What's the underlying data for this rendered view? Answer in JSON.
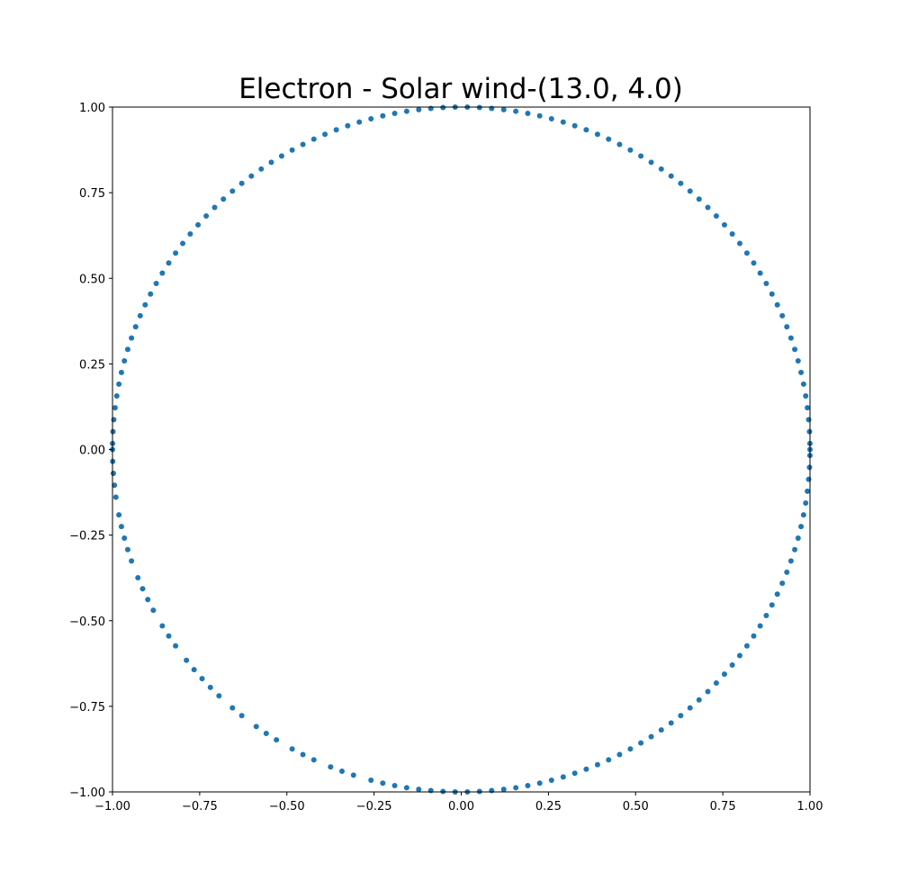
{
  "chart_data": {
    "type": "scatter",
    "title": "Electron - Solar wind-(13.0, 4.0)",
    "xlabel": "",
    "ylabel": "",
    "xlim": [
      -1.0,
      1.0
    ],
    "ylim": [
      -1.0,
      1.0
    ],
    "grid": false,
    "marker_color": "#1f77b4",
    "x_ticks": [
      "−1.00",
      "−0.75",
      "−0.50",
      "−0.25",
      "0.00",
      "0.25",
      "0.50",
      "0.75",
      "1.00"
    ],
    "y_ticks": [
      "−1.00",
      "−0.75",
      "−0.50",
      "−0.25",
      "0.00",
      "0.25",
      "0.50",
      "0.75",
      "1.00"
    ],
    "series": [
      {
        "angles_deg": [
          -180,
          -178,
          -176,
          -174,
          -172,
          -169,
          -167,
          -165,
          -163,
          -161,
          -158,
          -156,
          -154,
          -152,
          -149,
          -147,
          -145,
          -142,
          -140,
          -138,
          -136,
          -134,
          -131,
          -129,
          -126,
          -124,
          -122,
          -119,
          -117,
          -115,
          -112,
          -110,
          -108,
          -105,
          -103,
          -101,
          -99,
          -97,
          -95,
          -93,
          -91,
          -89,
          -87,
          -85,
          -83,
          -81,
          -79,
          -77,
          -75,
          -73,
          -71,
          -69,
          -67,
          -65,
          -63,
          -61,
          -59,
          -57,
          -55,
          -53,
          -51,
          -49,
          -47,
          -45,
          -43,
          -41,
          -39,
          -37,
          -35,
          -33,
          -31,
          -29,
          -27,
          -25,
          -23,
          -21,
          -19,
          -17,
          -15,
          -13,
          -11,
          -9,
          -7,
          -5,
          -3,
          -1,
          0,
          1,
          3,
          5,
          7,
          9,
          11,
          13,
          15,
          17,
          19,
          21,
          23,
          25,
          27,
          29,
          31,
          33,
          35,
          37,
          39,
          41,
          43,
          45,
          47,
          49,
          51,
          53,
          55,
          57,
          59,
          61,
          63,
          65,
          67,
          69,
          71,
          73,
          75,
          77,
          79,
          81,
          83,
          85,
          87,
          89,
          91,
          93,
          95,
          97,
          99,
          101,
          103,
          105,
          107,
          109,
          111,
          113,
          115,
          117,
          119,
          121,
          123,
          125,
          127,
          129,
          131,
          133,
          135,
          137,
          139,
          141,
          143,
          145,
          147,
          149,
          151,
          153,
          155,
          157,
          159,
          161,
          163,
          165,
          167,
          169,
          171,
          173,
          175,
          177,
          179
        ]
      }
    ]
  }
}
